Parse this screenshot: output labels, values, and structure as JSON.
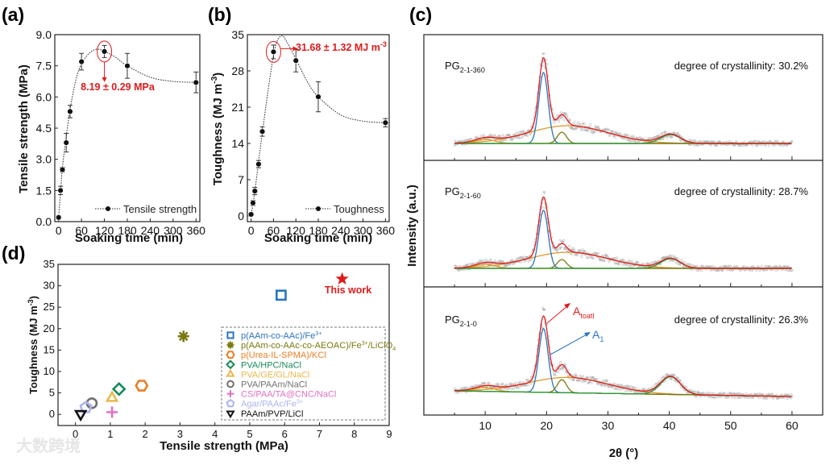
{
  "watermark": "大数跨境",
  "chart_data": [
    {
      "panel_label": "(a)",
      "type": "scatter",
      "xlabel": "Soaking time (min)",
      "ylabel": "Tensile strength (MPa)",
      "xlim": [
        -10,
        370
      ],
      "ylim": [
        0,
        9
      ],
      "xticks": [
        0,
        60,
        120,
        180,
        240,
        300,
        360
      ],
      "yticks": [
        0.0,
        1.5,
        3.0,
        4.5,
        6.0,
        7.5,
        9.0
      ],
      "legend": "Tensile strength",
      "points": [
        [
          0,
          0.2,
          0.08
        ],
        [
          5,
          1.5,
          0.2
        ],
        [
          10,
          2.5,
          0.12
        ],
        [
          20,
          3.8,
          0.45
        ],
        [
          30,
          5.3,
          0.3
        ],
        [
          60,
          7.7,
          0.4
        ],
        [
          120,
          8.19,
          0.29
        ],
        [
          180,
          7.5,
          0.6
        ],
        [
          360,
          6.7,
          0.5
        ]
      ],
      "fit": [
        [
          0,
          0.2
        ],
        [
          5,
          1.4
        ],
        [
          10,
          2.6
        ],
        [
          20,
          4.1
        ],
        [
          30,
          5.4
        ],
        [
          45,
          6.8
        ],
        [
          60,
          7.6
        ],
        [
          80,
          8.1
        ],
        [
          100,
          8.3
        ],
        [
          120,
          8.2
        ],
        [
          150,
          7.9
        ],
        [
          180,
          7.5
        ],
        [
          240,
          6.95
        ],
        [
          300,
          6.75
        ],
        [
          360,
          6.7
        ]
      ],
      "annotation": "8.19 ± 0.29 MPa",
      "highlight": [
        120,
        8.19
      ],
      "color": "#e01b1b"
    },
    {
      "panel_label": "(b)",
      "type": "scatter",
      "xlabel": "Soaking time (min)",
      "ylabel": "Toughness (MJ m",
      "ylabel_sup": "-3",
      "ylabel_end": ")",
      "xlim": [
        -10,
        370
      ],
      "ylim": [
        -1.1,
        35
      ],
      "xticks": [
        0,
        60,
        120,
        180,
        240,
        300,
        360
      ],
      "yticks": [
        0,
        7,
        14,
        21,
        28,
        35
      ],
      "legend": "Toughness",
      "points": [
        [
          0,
          0.3,
          0.2
        ],
        [
          5,
          2.5,
          0.5
        ],
        [
          10,
          4.8,
          0.7
        ],
        [
          20,
          10,
          0.7
        ],
        [
          30,
          16.3,
          0.9
        ],
        [
          60,
          31.68,
          1.32
        ],
        [
          120,
          30,
          2.2
        ],
        [
          180,
          23,
          2.9
        ],
        [
          360,
          18,
          0.8
        ]
      ],
      "fit": [
        [
          0,
          0
        ],
        [
          10,
          4.8
        ],
        [
          20,
          10.5
        ],
        [
          30,
          16
        ],
        [
          45,
          24
        ],
        [
          60,
          31
        ],
        [
          70,
          33.8
        ],
        [
          80,
          34.7
        ],
        [
          90,
          34.3
        ],
        [
          120,
          30.3
        ],
        [
          150,
          26
        ],
        [
          180,
          23
        ],
        [
          240,
          19.5
        ],
        [
          300,
          18.3
        ],
        [
          360,
          18
        ]
      ],
      "annotation": "31.68 ± 1.32 MJ m",
      "annotation_sup": "-3",
      "highlight": [
        60,
        31.68
      ],
      "color": "#e01b1b"
    },
    {
      "panel_label": "(c)",
      "type": "line",
      "xlabel": "2θ (°)",
      "ylabel": "Intensity (a.u.)",
      "xlim": [
        0,
        65
      ],
      "xticks": [
        10,
        20,
        30,
        40,
        50,
        60
      ],
      "colors": {
        "total": "#e01b1b",
        "amorphous": "#e09a2a",
        "A1": "#2b74c0",
        "p22": "#7a7a10",
        "p40": "#2a9a3a",
        "data": "#a8a8a8"
      },
      "subplots": [
        {
          "sample": "PG",
          "sub": "2-1-360",
          "crystallinity": "degree of crystallinity: 30.2%",
          "baseline": [
            21,
            21
          ],
          "peaks": {
            "p10": [
              10,
              5,
              1.6
            ],
            "amorphous": [
              23.5,
              22,
              6.5
            ],
            "A1": [
              19.5,
              88,
              0.75
            ],
            "p22": [
              22.5,
              14,
              0.75
            ],
            "p40": [
              40.2,
              11,
              1.6
            ]
          }
        },
        {
          "sample": "PG",
          "sub": "2-1-60",
          "crystallinity": "degree of crystallinity: 28.7%",
          "baseline": [
            23,
            23
          ],
          "peaks": {
            "p10": [
              10,
              5,
              1.6
            ],
            "amorphous": [
              23.5,
              20,
              6.5
            ],
            "A1": [
              19.5,
              72,
              0.75
            ],
            "p22": [
              22.5,
              11,
              0.75
            ],
            "p40": [
              40.2,
              12,
              1.6
            ]
          }
        },
        {
          "sample": "PG",
          "sub": "2-1-0",
          "crystallinity": "degree of crystallinity: 26.3%",
          "baseline": [
            30,
            23
          ],
          "peaks": {
            "p10": [
              10,
              5,
              1.6
            ],
            "amorphous": [
              23.5,
              19,
              6.5
            ],
            "A1": [
              19.5,
              79,
              0.75
            ],
            "p22": [
              22.5,
              16,
              0.75
            ],
            "p40": [
              40.2,
              22,
              1.6
            ]
          },
          "labels": {
            "total": "A",
            "total_sub": "toatl",
            "A1": "A",
            "A1_sub": "1"
          }
        }
      ]
    },
    {
      "panel_label": "(d)",
      "type": "scatter",
      "xlabel": "Tensile strength (MPa)",
      "ylabel": "Toughness (MJ m",
      "ylabel_sup": "-3",
      "ylabel_end": ")",
      "xlim": [
        -0.5,
        9
      ],
      "ylim": [
        -2.6,
        35
      ],
      "xticks": [
        0,
        1,
        2,
        3,
        4,
        5,
        6,
        7,
        8,
        9
      ],
      "yticks": [
        0,
        5,
        10,
        15,
        20,
        25,
        30,
        35
      ],
      "this_work": {
        "label": "This work",
        "x": 7.65,
        "y": 31.6,
        "color": "#e01b1b"
      },
      "series": [
        {
          "name": "p(AAm-co-AAc)/Fe",
          "sup": "3+",
          "tail": "",
          "marker": "square",
          "color": "#2b74c0",
          "x": 5.9,
          "y": 27.8
        },
        {
          "name": "p(AAm-co-AAc-co-AEOAC)/Fe",
          "sup": "3+",
          "tail": "/LiClO",
          "tail_sub": "4",
          "marker": "asterisk",
          "color": "#7a7a10",
          "x": 3.1,
          "y": 18.2
        },
        {
          "name": "p(Urea-IL-SPMA)/KCl",
          "marker": "hexagon",
          "color": "#ee7d22",
          "x": 1.9,
          "y": 6.7
        },
        {
          "name": "PVA/HPC/NaCl",
          "marker": "diamond",
          "color": "#168a5a",
          "x": 1.25,
          "y": 5.9
        },
        {
          "name": "PVA/GE/GL/NaCl",
          "marker": "triangle",
          "color": "#e9b84c",
          "x": 1.05,
          "y": 3.8
        },
        {
          "name": "PVA/PAAm/NaCl",
          "marker": "circle",
          "color": "#707070",
          "x": 0.47,
          "y": 2.6
        },
        {
          "name": "CS/PAA/TA@CNC/NaCl",
          "marker": "plus",
          "color": "#e070c4",
          "x": 1.05,
          "y": 0.5
        },
        {
          "name": "Agar/PAAc/Fe",
          "sup": "3+",
          "marker": "pentagon",
          "color": "#aab4ee",
          "x": 0.3,
          "y": 1.6
        },
        {
          "name": "PAAm/PVP/LiCl",
          "marker": "triangle-down",
          "color": "#111111",
          "x": 0.15,
          "y": 0.1
        }
      ]
    }
  ]
}
